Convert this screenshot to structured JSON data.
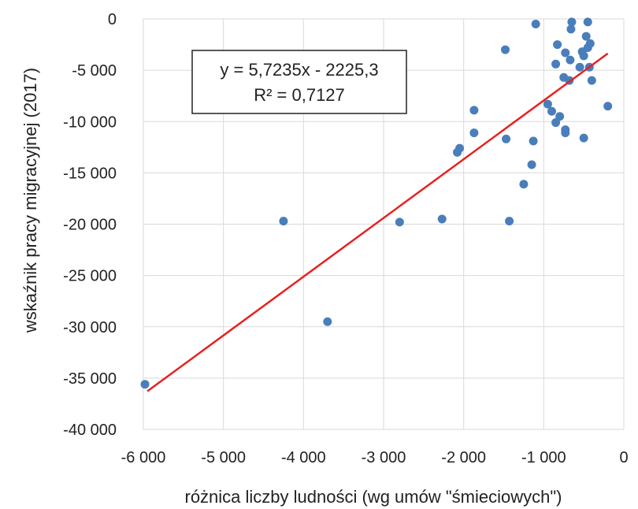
{
  "chart_data": {
    "type": "scatter",
    "xlabel": "różnica liczby ludności (wg umów \"śmieciowych\")",
    "ylabel": "wskaźnik pracy migracyjnej (2017)",
    "xlim": [
      -6000,
      0
    ],
    "ylim": [
      -40000,
      0
    ],
    "xticks": [
      -6000,
      -5000,
      -4000,
      -3000,
      -2000,
      -1000,
      0
    ],
    "xtick_labels": [
      "-6 000",
      "-5 000",
      "-4 000",
      "-3 000",
      "-2 000",
      "-1 000",
      "0"
    ],
    "yticks": [
      0,
      -5000,
      -10000,
      -15000,
      -20000,
      -25000,
      -30000,
      -35000,
      -40000
    ],
    "ytick_labels": [
      "0",
      "-5 000",
      "-10 000",
      "-15 000",
      "-20 000",
      "-25 000",
      "-30 000",
      "-35 000",
      "-40 000"
    ],
    "grid": true,
    "trendline": {
      "slope": 5.7235,
      "intercept": -2225.3,
      "x_range": [
        -5950,
        -200
      ],
      "color": "#e8201f",
      "equation": "y = 5,7235x - 2225,3",
      "r_squared": "R² = 0,7127"
    },
    "marker_color": "#4a7ebb",
    "points": [
      [
        -5980,
        -35600
      ],
      [
        -4250,
        -19700
      ],
      [
        -3700,
        -29500
      ],
      [
        -2800,
        -19800
      ],
      [
        -2270,
        -19500
      ],
      [
        -2080,
        -13000
      ],
      [
        -2050,
        -12600
      ],
      [
        -1870,
        -8900
      ],
      [
        -1870,
        -11100
      ],
      [
        -1480,
        -3000
      ],
      [
        -1470,
        -11700
      ],
      [
        -1430,
        -19700
      ],
      [
        -1250,
        -16100
      ],
      [
        -1150,
        -14200
      ],
      [
        -1130,
        -11900
      ],
      [
        -1100,
        -500
      ],
      [
        -950,
        -8300
      ],
      [
        -900,
        -9000
      ],
      [
        -850,
        -10100
      ],
      [
        -850,
        -4400
      ],
      [
        -830,
        -2500
      ],
      [
        -800,
        -9500
      ],
      [
        -750,
        -5700
      ],
      [
        -730,
        -10800
      ],
      [
        -730,
        -11100
      ],
      [
        -730,
        -3300
      ],
      [
        -680,
        -6000
      ],
      [
        -670,
        -4000
      ],
      [
        -660,
        -1000
      ],
      [
        -650,
        -300
      ],
      [
        -550,
        -4700
      ],
      [
        -520,
        -3200
      ],
      [
        -500,
        -11600
      ],
      [
        -500,
        -3600
      ],
      [
        -470,
        -1700
      ],
      [
        -450,
        -300
      ],
      [
        -450,
        -2800
      ],
      [
        -430,
        -4700
      ],
      [
        -420,
        -2400
      ],
      [
        -400,
        -6000
      ],
      [
        -200,
        -8500
      ]
    ]
  }
}
